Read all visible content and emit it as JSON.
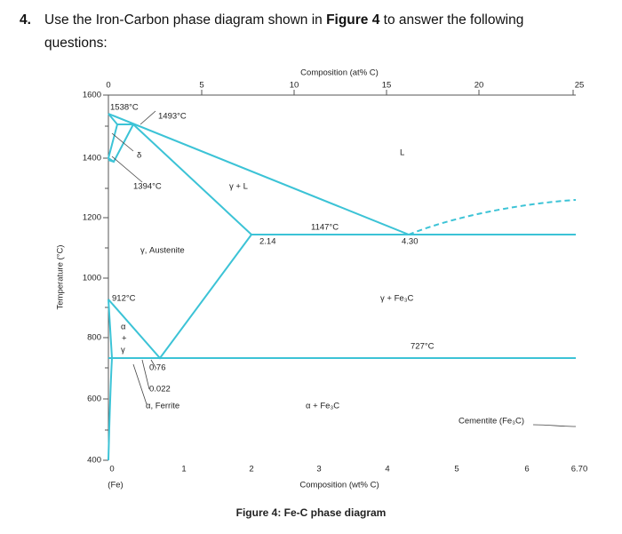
{
  "question": {
    "number": "4.",
    "parts": [
      "Use the Iron-Carbon phase diagram shown in ",
      "Figure 4",
      " to answer the following",
      "questions:"
    ]
  },
  "figure": {
    "top_axis_title": "Composition (at% C)",
    "top_ticks": [
      "0",
      "5",
      "10",
      "15",
      "20",
      "25"
    ],
    "left_ticks": [
      "1600",
      "1400",
      "1200",
      "1000",
      "800",
      "600",
      "400"
    ],
    "y_axis_title": "Temperature (°C)",
    "bottom_ticks": [
      "0",
      "1",
      "2",
      "3",
      "4",
      "5",
      "6",
      "6.70"
    ],
    "fe_label": "(Fe)",
    "bottom_axis_title": "Composition (wt% C)",
    "annotations": [
      "1538°C",
      "1493°C",
      "δ",
      "1394°C",
      "γ + L",
      "L",
      "1147°C",
      "2.14",
      "4.30",
      "γ, Austenite",
      "γ + Fe₃C",
      "912°C",
      "α",
      "+",
      "γ",
      "727°C",
      "0.76",
      "0.022",
      "α, Ferrite",
      "α + Fe₃C",
      "Cementite (Fe₃C)"
    ],
    "caption": "Figure 4: Fe-C phase diagram"
  }
}
